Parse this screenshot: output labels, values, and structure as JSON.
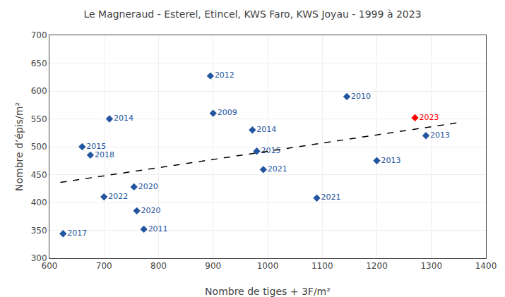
{
  "chart_data": {
    "type": "scatter",
    "title": "Le Magneraud - Esterel, Etincel, KWS Faro, KWS Joyau - 1999 à 2023",
    "xlabel": "Nombre de tiges + 3F/m²",
    "ylabel": "Nombre d’épis/m²",
    "xlim": [
      600,
      1400
    ],
    "ylim": [
      300,
      700
    ],
    "xticks": [
      600,
      700,
      800,
      900,
      1000,
      1100,
      1200,
      1300,
      1400
    ],
    "yticks": [
      300,
      350,
      400,
      450,
      500,
      550,
      600,
      650,
      700
    ],
    "grid": true,
    "series": [
      {
        "type": "scatter",
        "marker": "diamond",
        "x": [
          625,
          660,
          675,
          700,
          710,
          755,
          760,
          773,
          895,
          900,
          972,
          980,
          992,
          1090,
          1145,
          1200,
          1270,
          1290
        ],
        "values": [
          344,
          500,
          485,
          410,
          550,
          428,
          385,
          352,
          627,
          560,
          530,
          492,
          459,
          408,
          590,
          475,
          552,
          520
        ],
        "labels": [
          "2017",
          "2015",
          "2018",
          "2022",
          "2014",
          "2020",
          "2020",
          "2011",
          "2012",
          "2009",
          "2014",
          "2015",
          "2021",
          "2021",
          "2010",
          "2013",
          "2023",
          "2013"
        ],
        "colors": [
          "#2255a0",
          "#2255a0",
          "#2255a0",
          "#2255a0",
          "#2255a0",
          "#2255a0",
          "#2255a0",
          "#2255a0",
          "#2255a0",
          "#2255a0",
          "#2255a0",
          "#2255a0",
          "#2255a0",
          "#2255a0",
          "#2255a0",
          "#2255a0",
          "#ff0000",
          "#2255a0"
        ]
      },
      {
        "type": "line",
        "line_style": "dashed",
        "color": "#000000",
        "x": [
          620,
          1355
        ],
        "values": [
          436,
          544
        ]
      }
    ]
  }
}
